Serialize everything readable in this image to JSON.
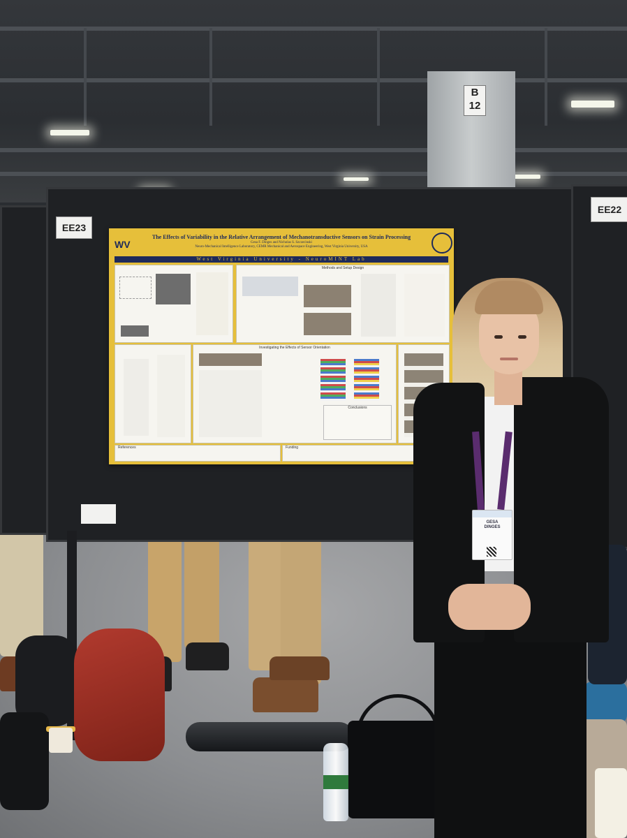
{
  "scene": {
    "pillar_sign": "B\n12"
  },
  "boards": {
    "left_label": "EE23",
    "right_label": "EE22"
  },
  "poster": {
    "title": "The Effects of Variability in the Relative Arrangement of Mechanotransductive Sensors on Strain Processing",
    "authors": "Gesa F. Dinges and Nicholas S. Szczecinski",
    "affiliation": "Neuro-Mechanical Intelligence Laboratory, CEMR Mechanical and Aerospace Engineering, West Virginia University, USA",
    "logo": "WV",
    "lab_bar": "West Virginia University - NeuroMINT Lab",
    "sections": {
      "methods": "Methods and Setup Design",
      "orientation": "Investigating the Effects of Sensor Orientation",
      "conclusions": "Conclusions",
      "references": "References",
      "funding": "Funding"
    }
  },
  "badge": {
    "name": "GESA\nDINGES"
  },
  "colors": {
    "poster_gold": "#e6bf3a",
    "poster_navy": "#1e2a5a",
    "board": "#1f2124"
  }
}
